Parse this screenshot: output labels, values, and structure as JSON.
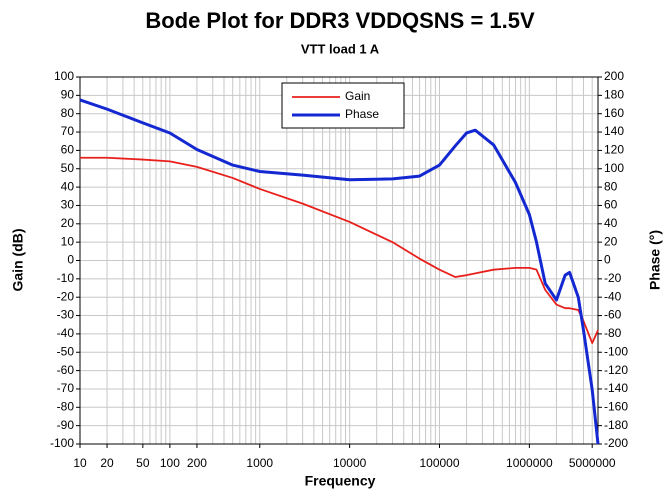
{
  "chart_data": {
    "type": "line",
    "title": "Bode Plot for DDR3 VDDQSNS = 1.5V",
    "subtitle": "VTT load 1 A",
    "xlabel": "Frequency",
    "ylabel": "Gain (dB)",
    "y2label": "Phase (°)",
    "xscale": "log",
    "xlim": [
      10,
      5800000
    ],
    "xticks": [
      10,
      20,
      50,
      100,
      200,
      1000,
      10000,
      100000,
      1000000,
      5000000
    ],
    "ylim": [
      -100,
      100
    ],
    "yticks": [
      -100,
      -90,
      -80,
      -70,
      -60,
      -50,
      -40,
      -30,
      -20,
      -10,
      0,
      10,
      20,
      30,
      40,
      50,
      60,
      70,
      80,
      90,
      100
    ],
    "y2lim": [
      -200,
      200
    ],
    "y2ticks": [
      -200,
      -180,
      -160,
      -140,
      -120,
      -100,
      -80,
      -60,
      -40,
      -20,
      0,
      20,
      40,
      60,
      80,
      100,
      120,
      140,
      160,
      180,
      200
    ],
    "grid": true,
    "legend": "upper center",
    "x": [
      10,
      20,
      50,
      100,
      200,
      500,
      1000,
      3000,
      10000,
      30000,
      60000,
      100000,
      150000,
      200000,
      250000,
      400000,
      700000,
      1000000,
      1200000,
      1500000,
      2000000,
      2500000,
      2800000,
      3500000,
      4000000,
      5000000,
      5800000
    ],
    "series": [
      {
        "name": "Gain",
        "color": "#e8201c",
        "axis": "y",
        "values": [
          56,
          56,
          55,
          54,
          51,
          45,
          39,
          31,
          21,
          10,
          1,
          -5,
          -9,
          -8,
          -7,
          -5,
          -4,
          -4,
          -5,
          -16,
          -24,
          -26,
          -26,
          -27,
          -33,
          -45,
          -38
        ]
      },
      {
        "name": "Phase",
        "color": "#1428d2",
        "axis": "y2",
        "values": [
          175,
          165,
          150,
          139,
          121,
          104,
          97,
          93,
          88,
          89,
          92,
          104,
          125,
          139,
          142,
          126,
          85,
          50,
          20,
          -25,
          -43,
          -16,
          -13,
          -40,
          -76,
          -141,
          -200
        ]
      }
    ]
  }
}
